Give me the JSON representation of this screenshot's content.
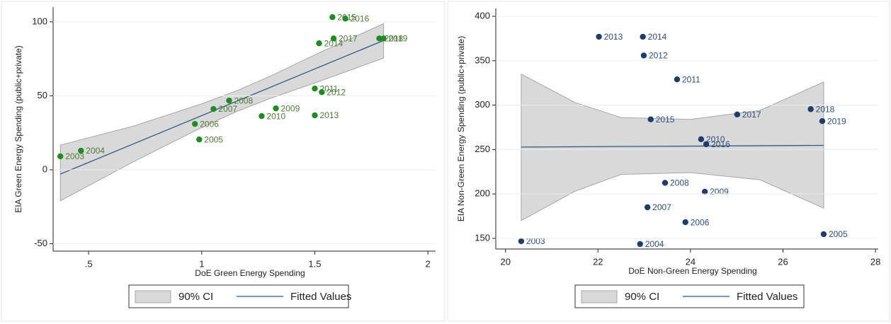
{
  "chart_data": [
    {
      "type": "scatter",
      "xlabel": "DoE Green Energy Spending",
      "ylabel": "EIA Green Energy Spending (public+private)",
      "labels": [
        "2003",
        "2004",
        "2005",
        "2006",
        "2007",
        "2008",
        "2009",
        "2010",
        "2011",
        "2012",
        "2013",
        "2014",
        "2015",
        "2016",
        "2017",
        "2018",
        "2019"
      ],
      "x": [
        0.375,
        0.466,
        0.989,
        0.97,
        1.052,
        1.121,
        1.328,
        1.265,
        1.5,
        1.531,
        1.5,
        1.519,
        1.578,
        1.635,
        1.583,
        1.785,
        1.804
      ],
      "values": [
        9.1,
        12.9,
        20.5,
        31.0,
        41.1,
        46.8,
        41.5,
        36.3,
        54.9,
        52.5,
        36.8,
        85.5,
        103.2,
        102.2,
        88.8,
        88.8,
        88.8
      ],
      "color": "#1e8c1e",
      "label_color": "#4f7a3a",
      "xlim": [
        0.343,
        2.034
      ],
      "ylim": [
        -55,
        110
      ],
      "xticks": [
        {
          "value": 0.5,
          "label": ".5"
        },
        1,
        1.5,
        2
      ],
      "yticks": [
        -50,
        0,
        50,
        100
      ],
      "fit": {
        "name": "Fitted Values",
        "color": "#2b5b84",
        "x": [
          0.375,
          1.804
        ],
        "values": [
          -2.9,
          87.4
        ]
      },
      "ci": {
        "name": "90% CI",
        "color": "#d9d9d9",
        "edge": "#a6a6a6",
        "x": [
          0.375,
          0.7,
          1.0,
          1.15,
          1.3,
          1.5,
          1.804
        ],
        "lower": [
          -21.0,
          5.6,
          28.6,
          39.1,
          48.1,
          58.7,
          75.5
        ],
        "upper": [
          16.7,
          29.6,
          44.6,
          53.1,
          63.1,
          77.7,
          98.8
        ]
      }
    },
    {
      "type": "scatter",
      "xlabel": "DoE Non-Green Energy Spending",
      "ylabel": "EIA Non-Green Energy Spending (public+private)",
      "labels": [
        "2003",
        "2004",
        "2005",
        "2006",
        "2007",
        "2008",
        "2009",
        "2010",
        "2011",
        "2012",
        "2013",
        "2014",
        "2015",
        "2016",
        "2017",
        "2018",
        "2019"
      ],
      "x": [
        20.34,
        22.91,
        26.88,
        23.89,
        23.07,
        23.45,
        24.31,
        24.23,
        23.71,
        22.99,
        22.02,
        22.97,
        23.14,
        24.34,
        25.01,
        26.6,
        26.85
      ],
      "values": [
        146.8,
        143.6,
        154.7,
        168.2,
        185.0,
        212.5,
        202.5,
        261.6,
        329.0,
        355.9,
        377.0,
        377.0,
        284.0,
        256.0,
        289.5,
        295.5,
        282.0
      ],
      "color": "#1f3d6b",
      "label_color": "#2c4f7a",
      "xlim": [
        19.79,
        28.06
      ],
      "ylim": [
        138,
        408.8
      ],
      "xticks": [
        20,
        22,
        24,
        26,
        28
      ],
      "yticks": [
        150,
        200,
        250,
        300,
        350,
        400
      ],
      "fit": {
        "name": "Fitted Values",
        "color": "#2b5b84",
        "x": [
          20.34,
          26.88
        ],
        "values": [
          252.8,
          254.7
        ]
      },
      "ci": {
        "name": "90% CI",
        "color": "#d9d9d9",
        "edge": "#a6a6a6",
        "x": [
          20.34,
          21.5,
          22.5,
          24.0,
          25.5,
          26.88
        ],
        "lower": [
          170,
          203,
          222,
          224,
          216,
          184
        ],
        "upper": [
          335,
          303,
          286,
          284,
          294,
          326
        ]
      }
    }
  ]
}
